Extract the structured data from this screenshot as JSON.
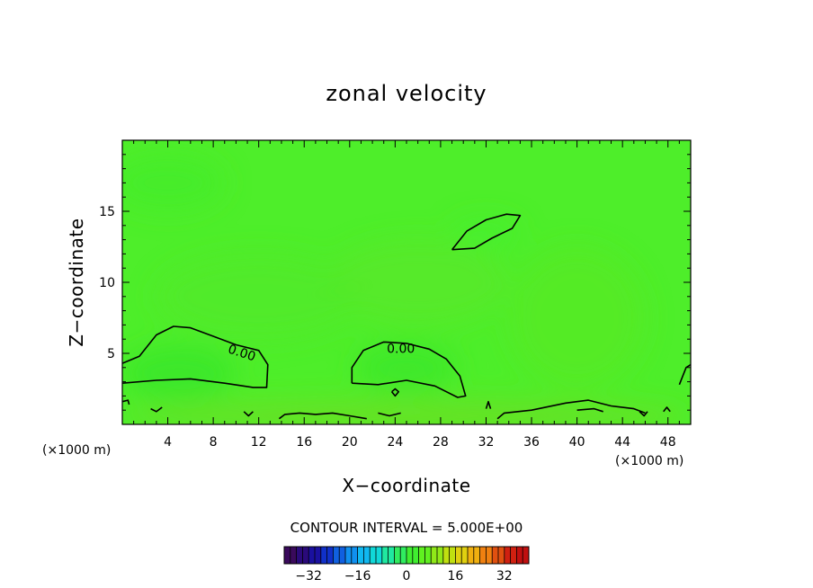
{
  "chart_data": {
    "type": "heatmap",
    "title": "zonal velocity",
    "xlabel": "X−coordinate",
    "ylabel": "Z−coordinate",
    "x_unit_label_left": "(×1000 m)",
    "x_unit_label_right": "(×1000 m)",
    "xlim": [
      0,
      50
    ],
    "ylim": [
      0,
      20
    ],
    "x_ticks": [
      4,
      8,
      12,
      16,
      20,
      24,
      28,
      32,
      36,
      40,
      44,
      48
    ],
    "y_ticks": [
      5,
      10,
      15
    ],
    "contour_interval_label": "CONTOUR INTERVAL = 5.000E+00",
    "contour_labels": [
      {
        "text": "0.00",
        "x": 10.5,
        "y": 5.0
      },
      {
        "text": "0.00",
        "x": 24.5,
        "y": 5.3
      }
    ],
    "zero_contours": [
      [
        [
          0,
          4.3
        ],
        [
          1.5,
          4.8
        ],
        [
          3,
          6.3
        ],
        [
          4.5,
          6.9
        ],
        [
          6,
          6.8
        ],
        [
          8,
          6.2
        ],
        [
          10,
          5.6
        ],
        [
          12,
          5.2
        ],
        [
          12.8,
          4.2
        ],
        [
          12.7,
          2.6
        ],
        [
          11.5,
          2.6
        ],
        [
          9,
          2.9
        ],
        [
          6,
          3.2
        ],
        [
          3,
          3.1
        ],
        [
          0,
          2.9
        ]
      ],
      [
        [
          20.2,
          2.9
        ],
        [
          20.2,
          4.0
        ],
        [
          21.2,
          5.2
        ],
        [
          23,
          5.8
        ],
        [
          25,
          5.7
        ],
        [
          27,
          5.3
        ],
        [
          28.5,
          4.6
        ],
        [
          29.7,
          3.4
        ],
        [
          30.2,
          2.0
        ],
        [
          29.5,
          1.9
        ],
        [
          27.5,
          2.7
        ],
        [
          25,
          3.1
        ],
        [
          22.5,
          2.8
        ],
        [
          20.2,
          2.9
        ]
      ],
      [
        [
          29,
          12.3
        ],
        [
          30.3,
          13.6
        ],
        [
          32,
          14.4
        ],
        [
          33.8,
          14.8
        ],
        [
          35,
          14.7
        ],
        [
          34.3,
          13.8
        ],
        [
          32.5,
          13.1
        ],
        [
          31,
          12.4
        ],
        [
          29,
          12.3
        ]
      ],
      [
        [
          13.8,
          0.4
        ],
        [
          14.3,
          0.7
        ],
        [
          15.6,
          0.8
        ],
        [
          17,
          0.7
        ],
        [
          18.5,
          0.8
        ],
        [
          20,
          0.6
        ],
        [
          21.5,
          0.4
        ]
      ],
      [
        [
          33,
          0.4
        ],
        [
          33.6,
          0.8
        ],
        [
          36,
          1.0
        ],
        [
          39,
          1.5
        ],
        [
          41,
          1.7
        ],
        [
          43,
          1.3
        ],
        [
          45,
          1.1
        ],
        [
          46,
          0.8
        ]
      ],
      [
        [
          49,
          2.8
        ],
        [
          49.6,
          4.0
        ],
        [
          50,
          4.2
        ]
      ],
      [
        [
          23.7,
          2.3
        ],
        [
          24,
          2.0
        ],
        [
          24.3,
          2.3
        ],
        [
          24,
          2.5
        ],
        [
          23.7,
          2.3
        ]
      ],
      [
        [
          40,
          1.0
        ],
        [
          41.5,
          1.1
        ],
        [
          42.3,
          0.9
        ]
      ],
      [
        [
          45.5,
          0.9
        ],
        [
          45.9,
          0.6
        ],
        [
          46.2,
          0.9
        ]
      ],
      [
        [
          47.6,
          0.9
        ],
        [
          47.9,
          1.2
        ],
        [
          48.2,
          0.9
        ]
      ],
      [
        [
          0,
          1.6
        ],
        [
          0.5,
          1.7
        ],
        [
          0.6,
          1.4
        ]
      ],
      [
        [
          2.5,
          1.1
        ],
        [
          3,
          0.9
        ],
        [
          3.5,
          1.2
        ]
      ],
      [
        [
          10.7,
          0.9
        ],
        [
          11.1,
          0.6
        ],
        [
          11.5,
          0.9
        ]
      ],
      [
        [
          22.5,
          0.8
        ],
        [
          23.5,
          0.6
        ],
        [
          24.5,
          0.8
        ]
      ],
      [
        [
          32,
          1.1
        ],
        [
          32.2,
          1.6
        ],
        [
          32.4,
          1.1
        ]
      ]
    ],
    "field_regions": [
      {
        "x": 5,
        "y": 3.6,
        "rx": 5,
        "ry": 2,
        "value": -2,
        "color": "#39e628"
      },
      {
        "x": 25,
        "y": 4,
        "rx": 4.5,
        "ry": 1.8,
        "value": -2,
        "color": "#3ce82a"
      },
      {
        "x": 32,
        "y": 13.5,
        "rx": 3,
        "ry": 1,
        "value": -1,
        "color": "#44f02d"
      },
      {
        "x": 40,
        "y": 7.5,
        "rx": 6,
        "ry": 5,
        "value": 3,
        "color": "#56ea26"
      },
      {
        "x": 26,
        "y": 10,
        "rx": 8,
        "ry": 3,
        "value": 2,
        "color": "#58e928"
      },
      {
        "x": 12,
        "y": 9,
        "rx": 9,
        "ry": 3,
        "value": 1,
        "color": "#52ea28"
      },
      {
        "x": 4,
        "y": 17,
        "rx": 5,
        "ry": 2,
        "value": -1,
        "color": "#44ec2c"
      },
      {
        "x": 25,
        "y": 0.6,
        "rx": 25,
        "ry": 1.2,
        "value": 3,
        "color": "#6ae026"
      }
    ],
    "field_base_color": "#4eee2a",
    "colorbar": {
      "min": -40,
      "max": 40,
      "ticks": [
        "−32",
        "−16",
        "0",
        "16",
        "32"
      ],
      "tick_values": [
        -32,
        -16,
        0,
        16,
        32
      ],
      "colors": [
        "#3a0a5c",
        "#2a0a7a",
        "#1a10a0",
        "#1030c8",
        "#1060e0",
        "#1090f0",
        "#10b8f0",
        "#10d8d8",
        "#20e8a0",
        "#30ec60",
        "#40ee30",
        "#60f020",
        "#90e818",
        "#c0e010",
        "#e0d010",
        "#f0b010",
        "#f08010",
        "#e05010",
        "#d02010",
        "#c01010"
      ]
    }
  }
}
